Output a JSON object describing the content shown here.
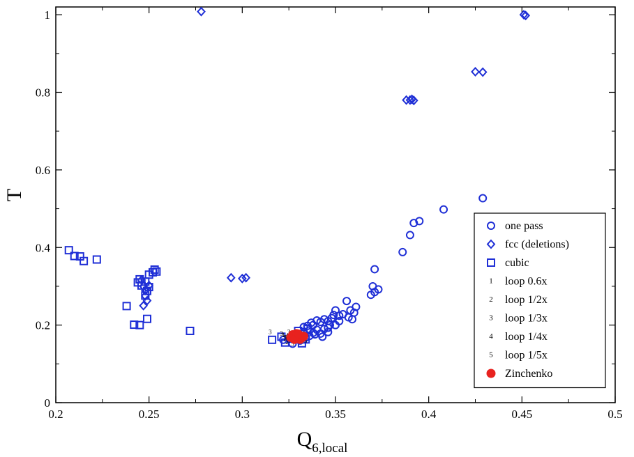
{
  "chart_data": {
    "type": "scatter",
    "xlabel": "Q",
    "xlabel_sub": "6,local",
    "ylabel": "T",
    "xlim": [
      0.2,
      0.5
    ],
    "ylim": [
      0,
      1.02
    ],
    "xticks": [
      "0.2",
      "0.25",
      "0.3",
      "0.35",
      "0.4",
      "0.45",
      "0.5"
    ],
    "xtick_values": [
      0.2,
      0.25,
      0.3,
      0.35,
      0.4,
      0.45,
      0.5
    ],
    "yticks": [
      "0",
      "0.2",
      "0.4",
      "0.6",
      "0.8",
      "1"
    ],
    "ytick_values": [
      0,
      0.2,
      0.4,
      0.6,
      0.8,
      1.0
    ],
    "grid": false,
    "legend_position": "bottom-right",
    "marker_color": "#1f2fd6",
    "highlight_color": "#e8221f",
    "series": [
      {
        "name": "one pass",
        "marker": "circle",
        "points": [
          [
            0.429,
            0.527
          ],
          [
            0.408,
            0.498
          ],
          [
            0.395,
            0.468
          ],
          [
            0.392,
            0.463
          ],
          [
            0.39,
            0.432
          ],
          [
            0.386,
            0.388
          ],
          [
            0.371,
            0.344
          ],
          [
            0.373,
            0.292
          ],
          [
            0.37,
            0.3
          ],
          [
            0.371,
            0.285
          ],
          [
            0.369,
            0.278
          ],
          [
            0.361,
            0.247
          ],
          [
            0.36,
            0.232
          ],
          [
            0.358,
            0.238
          ],
          [
            0.356,
            0.262
          ],
          [
            0.357,
            0.22
          ],
          [
            0.354,
            0.228
          ],
          [
            0.352,
            0.224
          ],
          [
            0.35,
            0.238
          ],
          [
            0.349,
            0.226
          ],
          [
            0.352,
            0.21
          ],
          [
            0.348,
            0.218
          ],
          [
            0.346,
            0.21
          ],
          [
            0.344,
            0.215
          ],
          [
            0.342,
            0.208
          ],
          [
            0.34,
            0.212
          ],
          [
            0.338,
            0.2
          ],
          [
            0.337,
            0.206
          ],
          [
            0.335,
            0.198
          ],
          [
            0.333,
            0.195
          ],
          [
            0.346,
            0.193
          ],
          [
            0.35,
            0.2
          ],
          [
            0.344,
            0.19
          ],
          [
            0.34,
            0.188
          ],
          [
            0.336,
            0.186
          ],
          [
            0.338,
            0.18
          ],
          [
            0.346,
            0.182
          ],
          [
            0.342,
            0.178
          ],
          [
            0.339,
            0.176
          ],
          [
            0.336,
            0.172
          ],
          [
            0.343,
            0.17
          ],
          [
            0.334,
            0.168
          ],
          [
            0.331,
            0.16
          ],
          [
            0.327,
            0.152
          ],
          [
            0.322,
            0.162
          ],
          [
            0.359,
            0.215
          ],
          [
            0.347,
            0.2
          ],
          [
            0.333,
            0.182
          ]
        ]
      },
      {
        "name": "fcc (deletions)",
        "marker": "diamond",
        "points": [
          [
            0.278,
            1.008
          ],
          [
            0.451,
            1.0
          ],
          [
            0.452,
            0.998
          ],
          [
            0.425,
            0.853
          ],
          [
            0.429,
            0.852
          ],
          [
            0.388,
            0.78
          ],
          [
            0.39,
            0.78
          ],
          [
            0.392,
            0.779
          ],
          [
            0.391,
            0.782
          ],
          [
            0.294,
            0.322
          ],
          [
            0.3,
            0.32
          ],
          [
            0.302,
            0.322
          ],
          [
            0.247,
            0.25
          ],
          [
            0.249,
            0.263
          ],
          [
            0.248,
            0.275
          ],
          [
            0.248,
            0.289
          ],
          [
            0.25,
            0.302
          ],
          [
            0.246,
            0.316
          ],
          [
            0.247,
            0.3
          ]
        ]
      },
      {
        "name": "cubic",
        "marker": "square",
        "points": [
          [
            0.207,
            0.393
          ],
          [
            0.21,
            0.378
          ],
          [
            0.213,
            0.377
          ],
          [
            0.215,
            0.365
          ],
          [
            0.222,
            0.369
          ],
          [
            0.238,
            0.249
          ],
          [
            0.242,
            0.201
          ],
          [
            0.245,
            0.2
          ],
          [
            0.249,
            0.216
          ],
          [
            0.272,
            0.185
          ],
          [
            0.244,
            0.31
          ],
          [
            0.245,
            0.318
          ],
          [
            0.246,
            0.302
          ],
          [
            0.248,
            0.312
          ],
          [
            0.25,
            0.33
          ],
          [
            0.25,
            0.298
          ],
          [
            0.252,
            0.336
          ],
          [
            0.253,
            0.343
          ],
          [
            0.254,
            0.338
          ],
          [
            0.249,
            0.288
          ],
          [
            0.248,
            0.276
          ],
          [
            0.316,
            0.162
          ],
          [
            0.321,
            0.17
          ],
          [
            0.323,
            0.155
          ],
          [
            0.326,
            0.165
          ],
          [
            0.329,
            0.172
          ],
          [
            0.332,
            0.153
          ],
          [
            0.334,
            0.163
          ],
          [
            0.33,
            0.185
          ],
          [
            0.335,
            0.19
          ]
        ]
      },
      {
        "name": "loop 0.6x",
        "marker": "1",
        "points": [
          [
            0.322,
            0.174
          ],
          [
            0.325,
            0.168
          ],
          [
            0.328,
            0.18
          ],
          [
            0.331,
            0.166
          ],
          [
            0.327,
            0.158
          ],
          [
            0.333,
            0.178
          ]
        ]
      },
      {
        "name": "loop 1/2x",
        "marker": "2",
        "points": [
          [
            0.323,
            0.164
          ],
          [
            0.326,
            0.176
          ],
          [
            0.329,
            0.16
          ],
          [
            0.332,
            0.17
          ],
          [
            0.33,
            0.182
          ],
          [
            0.324,
            0.156
          ]
        ]
      },
      {
        "name": "loop 1/3x",
        "marker": "3",
        "points": [
          [
            0.315,
            0.182
          ],
          [
            0.321,
            0.178
          ],
          [
            0.325,
            0.182
          ],
          [
            0.328,
            0.164
          ],
          [
            0.331,
            0.176
          ],
          [
            0.334,
            0.16
          ]
        ]
      },
      {
        "name": "loop 1/4x",
        "marker": "4",
        "points": [
          [
            0.324,
            0.172
          ],
          [
            0.327,
            0.166
          ],
          [
            0.33,
            0.158
          ],
          [
            0.333,
            0.172
          ],
          [
            0.326,
            0.16
          ],
          [
            0.329,
            0.178
          ]
        ]
      },
      {
        "name": "loop 1/5x",
        "marker": "5",
        "points": [
          [
            0.325,
            0.16
          ],
          [
            0.328,
            0.172
          ],
          [
            0.331,
            0.164
          ],
          [
            0.323,
            0.168
          ],
          [
            0.327,
            0.152
          ],
          [
            0.332,
            0.16
          ]
        ]
      },
      {
        "name": "Zinchenko",
        "marker": "filled-circle",
        "points": [
          [
            0.326,
            0.168
          ],
          [
            0.328,
            0.172
          ],
          [
            0.329,
            0.165
          ],
          [
            0.33,
            0.17
          ],
          [
            0.331,
            0.173
          ],
          [
            0.327,
            0.175
          ],
          [
            0.332,
            0.167
          ],
          [
            0.329,
            0.178
          ],
          [
            0.331,
            0.163
          ],
          [
            0.328,
            0.163
          ],
          [
            0.333,
            0.171
          ],
          [
            0.33,
            0.177
          ]
        ]
      }
    ]
  }
}
